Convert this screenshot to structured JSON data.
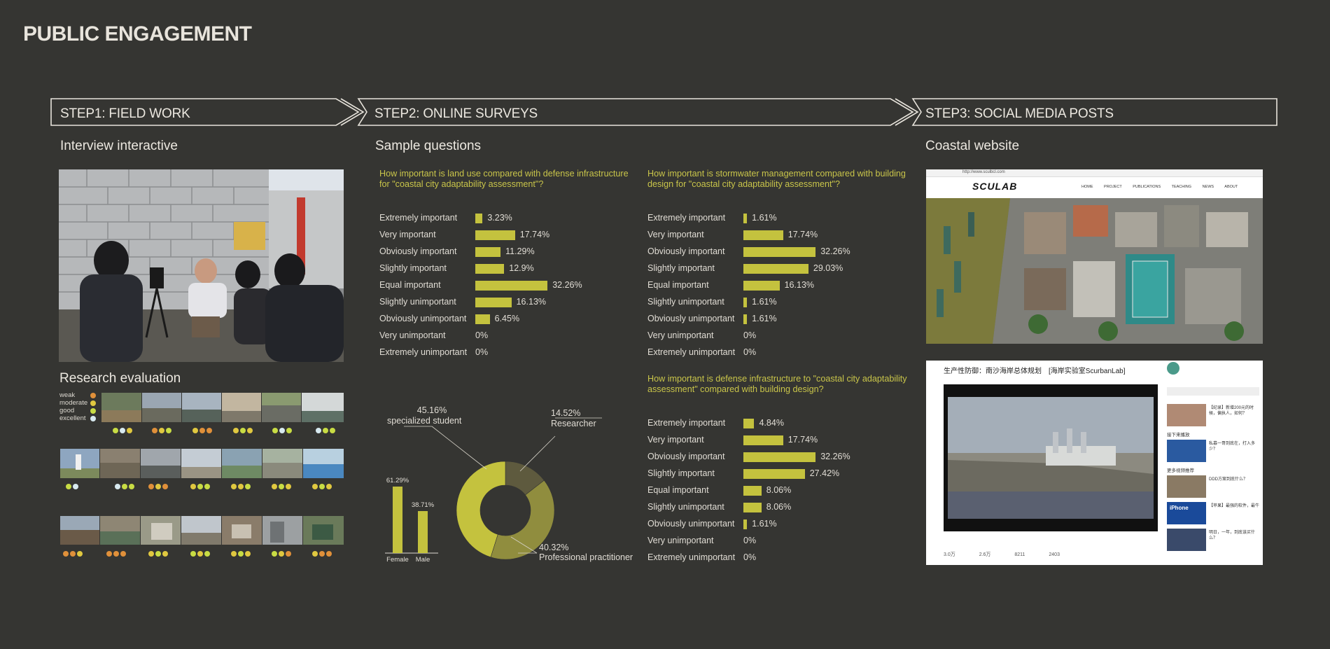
{
  "title": "PUBLIC ENGAGEMENT",
  "steps": [
    {
      "label": "STEP1: FIELD WORK"
    },
    {
      "label": "STEP2: ONLINE SURVEYS"
    },
    {
      "label": "STEP3: SOCIAL MEDIA POSTS"
    }
  ],
  "field_work": {
    "title": "Interview interactive",
    "evaluation_title": "Research evaluation",
    "legend": [
      "weak",
      "moderate",
      "good",
      "excellent"
    ],
    "legend_colors": [
      "#e0903a",
      "#e0c840",
      "#c8dc44",
      "#d8eaf0"
    ]
  },
  "surveys": {
    "title": "Sample questions",
    "q1": {
      "question": "How important is land use compared with defense infrastructure for \"coastal city adaptability assessment\"?",
      "rows": [
        {
          "label": "Extremely important",
          "value": 3.23,
          "text": "3.23%"
        },
        {
          "label": "Very important",
          "value": 17.74,
          "text": "17.74%"
        },
        {
          "label": "Obviously important",
          "value": 11.29,
          "text": "11.29%"
        },
        {
          "label": "Slightly important",
          "value": 12.9,
          "text": "12.9%"
        },
        {
          "label": "Equal important",
          "value": 32.26,
          "text": "32.26%"
        },
        {
          "label": "Slightly unimportant",
          "value": 16.13,
          "text": "16.13%"
        },
        {
          "label": "Obviously unimportant",
          "value": 6.45,
          "text": "6.45%"
        },
        {
          "label": "Very unimportant",
          "value": 0,
          "text": "0%"
        },
        {
          "label": "Extremely unimportant",
          "value": 0,
          "text": "0%"
        }
      ]
    },
    "q2": {
      "question": "How important is stormwater management compared with building design for \"coastal city adaptability assessment\"?",
      "rows": [
        {
          "label": "Extremely important",
          "value": 1.61,
          "text": "1.61%"
        },
        {
          "label": "Very important",
          "value": 17.74,
          "text": "17.74%"
        },
        {
          "label": "Obviously important",
          "value": 32.26,
          "text": "32.26%"
        },
        {
          "label": "Slightly important",
          "value": 29.03,
          "text": "29.03%"
        },
        {
          "label": "Equal important",
          "value": 16.13,
          "text": "16.13%"
        },
        {
          "label": "Slightly unimportant",
          "value": 1.61,
          "text": "1.61%"
        },
        {
          "label": "Obviously unimportant",
          "value": 1.61,
          "text": "1.61%"
        },
        {
          "label": "Very unimportant",
          "value": 0,
          "text": "0%"
        },
        {
          "label": "Extremely unimportant",
          "value": 0,
          "text": "0%"
        }
      ]
    },
    "q3": {
      "question": "How important is defense infrastructure to \"coastal city adaptability assessment\" compared with building design?",
      "rows": [
        {
          "label": "Extremely important",
          "value": 4.84,
          "text": "4.84%"
        },
        {
          "label": "Very important",
          "value": 17.74,
          "text": "17.74%"
        },
        {
          "label": "Obviously important",
          "value": 32.26,
          "text": "32.26%"
        },
        {
          "label": "Slightly important",
          "value": 27.42,
          "text": "27.42%"
        },
        {
          "label": "Equal important",
          "value": 8.06,
          "text": "8.06%"
        },
        {
          "label": "Slightly unimportant",
          "value": 8.06,
          "text": "8.06%"
        },
        {
          "label": "Obviously unimportant",
          "value": 1.61,
          "text": "1.61%"
        },
        {
          "label": "Very unimportant",
          "value": 0,
          "text": "0%"
        },
        {
          "label": "Extremely unimportant",
          "value": 0,
          "text": "0%"
        }
      ]
    },
    "gender": {
      "categories": [
        "Female",
        "Male"
      ],
      "values": [
        61.29,
        38.71
      ],
      "texts": [
        "61.29%",
        "38.71%"
      ]
    },
    "respondents": {
      "slices": [
        {
          "name": "specialized student",
          "value": 45.16,
          "text": "45.16%",
          "color": "#c4c23e"
        },
        {
          "name": "Researcher",
          "value": 14.52,
          "text": "14.52%",
          "color": "#5e5a3e"
        },
        {
          "name": "Professional practitioner",
          "value": 40.32,
          "text": "40.32%",
          "color": "#908d3e"
        }
      ]
    }
  },
  "chart_data": [
    {
      "type": "bar",
      "title": "How important is land use compared with defense infrastructure for \"coastal city adaptability assessment\"?",
      "categories": [
        "Extremely important",
        "Very important",
        "Obviously important",
        "Slightly important",
        "Equal important",
        "Slightly unimportant",
        "Obviously unimportant",
        "Very unimportant",
        "Extremely unimportant"
      ],
      "values": [
        3.23,
        17.74,
        11.29,
        12.9,
        32.26,
        16.13,
        6.45,
        0,
        0
      ]
    },
    {
      "type": "bar",
      "title": "How important is stormwater management compared with building design for \"coastal city adaptability assessment\"?",
      "categories": [
        "Extremely important",
        "Very important",
        "Obviously important",
        "Slightly important",
        "Equal important",
        "Slightly unimportant",
        "Obviously unimportant",
        "Very unimportant",
        "Extremely unimportant"
      ],
      "values": [
        1.61,
        17.74,
        32.26,
        29.03,
        16.13,
        1.61,
        1.61,
        0,
        0
      ]
    },
    {
      "type": "bar",
      "title": "How important is defense infrastructure to \"coastal city adaptability assessment\" compared with building design?",
      "categories": [
        "Extremely important",
        "Very important",
        "Obviously important",
        "Slightly important",
        "Equal important",
        "Slightly unimportant",
        "Obviously unimportant",
        "Very unimportant",
        "Extremely unimportant"
      ],
      "values": [
        4.84,
        17.74,
        32.26,
        27.42,
        8.06,
        8.06,
        1.61,
        0,
        0
      ]
    },
    {
      "type": "bar",
      "categories": [
        "Female",
        "Male"
      ],
      "values": [
        61.29,
        38.71
      ]
    },
    {
      "type": "pie",
      "categories": [
        "specialized student",
        "Researcher",
        "Professional practitioner"
      ],
      "values": [
        45.16,
        14.52,
        40.32
      ]
    }
  ],
  "social": {
    "title": "Coastal website",
    "site": {
      "url": "http://www.sculbcl.com",
      "logo": "SCULAB",
      "nav": [
        "HOME",
        "PROJECT",
        "PUBLICATIONS",
        "TEACHING",
        "NEWS",
        "ABOUT"
      ]
    },
    "video": {
      "title": "生产性防御：南沙海岸总体规划　[海岸实验室ScurbanLab]",
      "stats": [
        "3.0万",
        "2.6万",
        "8211",
        "2403"
      ],
      "side_items": [
        "【纪录】新增200元的时候，偏执人，如何？",
        "私募一哥到底在，打入多少？",
        "DDD方案到底什么？",
        "【苹果】最强的软件，最牛",
        "明日，一年，到底该买什么？"
      ],
      "side_heading_1": "接下来播放",
      "side_heading_2": "更多视频推荐",
      "iphone_badge": "iPhone"
    }
  }
}
